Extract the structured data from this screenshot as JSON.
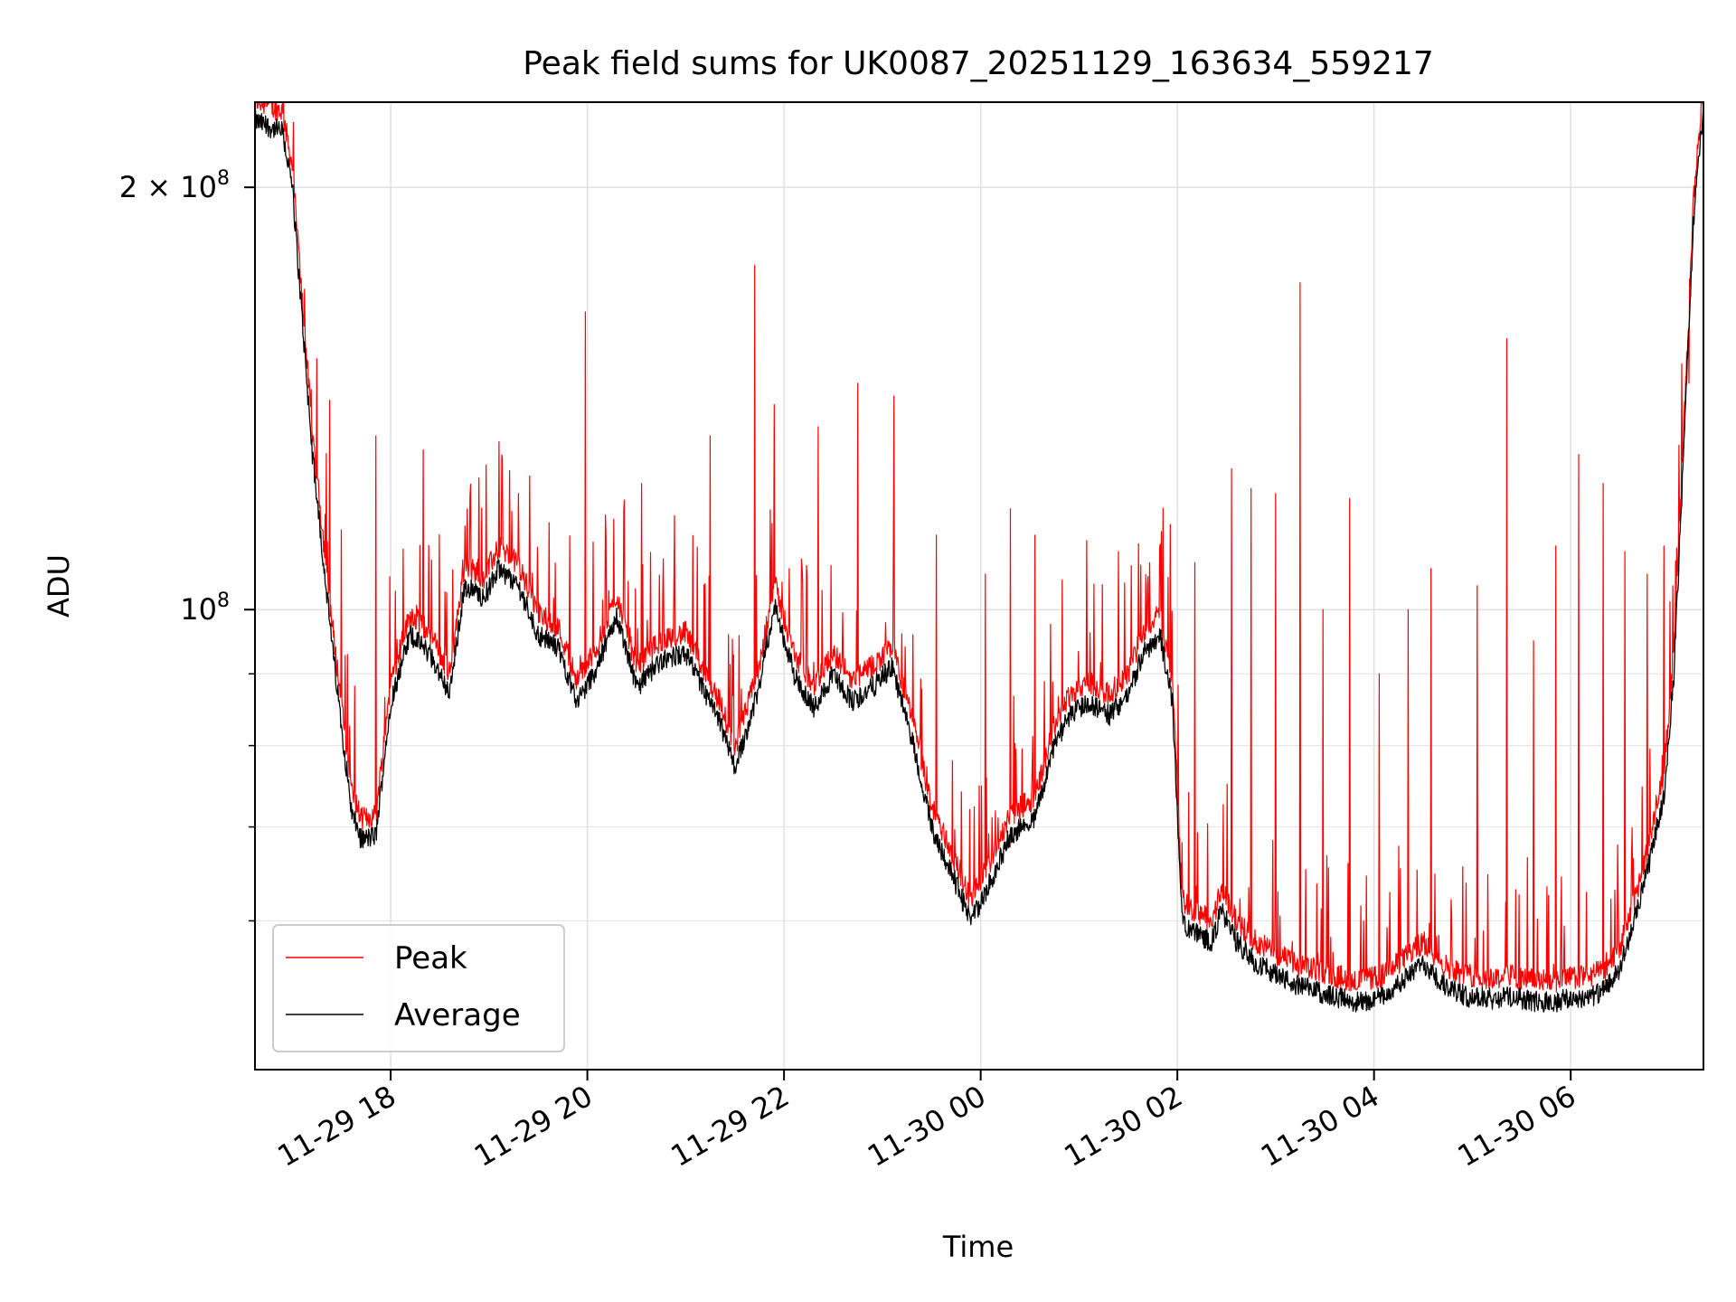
{
  "chart_data": {
    "type": "line",
    "title": "Peak field sums for UK0087_20251129_163634_559217",
    "xlabel": "Time",
    "ylabel": "ADU",
    "yscale": "log",
    "xlim": [
      16.62,
      31.35
    ],
    "ylim": [
      47000000,
      230000000
    ],
    "grid": true,
    "legend_position": "lower-left",
    "x_ticks": [
      {
        "value": 18,
        "label": "11-29 18"
      },
      {
        "value": 20,
        "label": "11-29 20"
      },
      {
        "value": 22,
        "label": "11-29 22"
      },
      {
        "value": 24,
        "label": "11-30 00"
      },
      {
        "value": 26,
        "label": "11-30 02"
      },
      {
        "value": 28,
        "label": "11-30 04"
      },
      {
        "value": 30,
        "label": "11-30 06"
      }
    ],
    "y_major_ticks": [
      {
        "value": 100000000,
        "mantissa": "10",
        "exponent": "8"
      },
      {
        "value": 200000000,
        "mantissa": "2 × 10",
        "exponent": "8"
      }
    ],
    "y_minor_ticks": [
      60000000,
      70000000,
      80000000,
      90000000
    ],
    "series": [
      {
        "name": "Peak",
        "color": "#ff0000"
      },
      {
        "name": "Average",
        "color": "#000000"
      }
    ],
    "baseline_knots": [
      [
        16.62,
        223000000
      ],
      [
        16.9,
        219000000
      ],
      [
        17.0,
        200000000
      ],
      [
        17.2,
        130000000
      ],
      [
        17.4,
        95000000
      ],
      [
        17.6,
        72000000
      ],
      [
        17.7,
        68500000
      ],
      [
        17.85,
        69000000
      ],
      [
        18.0,
        86000000
      ],
      [
        18.2,
        96000000
      ],
      [
        18.4,
        93000000
      ],
      [
        18.6,
        87000000
      ],
      [
        18.75,
        104000000
      ],
      [
        18.95,
        102000000
      ],
      [
        19.1,
        107000000
      ],
      [
        19.3,
        104000000
      ],
      [
        19.5,
        96000000
      ],
      [
        19.7,
        94000000
      ],
      [
        19.9,
        86000000
      ],
      [
        20.1,
        91000000
      ],
      [
        20.3,
        99000000
      ],
      [
        20.5,
        88000000
      ],
      [
        20.75,
        92000000
      ],
      [
        21.0,
        93000000
      ],
      [
        21.2,
        87000000
      ],
      [
        21.35,
        83000000
      ],
      [
        21.5,
        77000000
      ],
      [
        21.75,
        88000000
      ],
      [
        21.9,
        101000000
      ],
      [
        22.1,
        90000000
      ],
      [
        22.3,
        85000000
      ],
      [
        22.5,
        90000000
      ],
      [
        22.7,
        86000000
      ],
      [
        22.9,
        88000000
      ],
      [
        23.1,
        91000000
      ],
      [
        23.3,
        81000000
      ],
      [
        23.5,
        70000000
      ],
      [
        23.7,
        65000000
      ],
      [
        23.9,
        60000000
      ],
      [
        24.1,
        64000000
      ],
      [
        24.3,
        69000000
      ],
      [
        24.55,
        71000000
      ],
      [
        24.75,
        80000000
      ],
      [
        24.9,
        84000000
      ],
      [
        25.1,
        86000000
      ],
      [
        25.3,
        84000000
      ],
      [
        25.5,
        87000000
      ],
      [
        25.65,
        93000000
      ],
      [
        25.82,
        96000000
      ],
      [
        25.95,
        86000000
      ],
      [
        26.05,
        60000000
      ],
      [
        26.15,
        59000000
      ],
      [
        26.35,
        58000000
      ],
      [
        26.45,
        61000000
      ],
      [
        26.6,
        58000000
      ],
      [
        26.8,
        56000000
      ],
      [
        27.0,
        55000000
      ],
      [
        27.2,
        54000000
      ],
      [
        27.4,
        53500000
      ],
      [
        27.6,
        53000000
      ],
      [
        27.85,
        52500000
      ],
      [
        28.1,
        53000000
      ],
      [
        28.3,
        54500000
      ],
      [
        28.5,
        56000000
      ],
      [
        28.7,
        54000000
      ],
      [
        28.95,
        53000000
      ],
      [
        29.2,
        52800000
      ],
      [
        29.4,
        53000000
      ],
      [
        29.6,
        52600000
      ],
      [
        29.8,
        52500000
      ],
      [
        30.0,
        52800000
      ],
      [
        30.2,
        53000000
      ],
      [
        30.35,
        53500000
      ],
      [
        30.5,
        55500000
      ],
      [
        30.65,
        60000000
      ],
      [
        30.8,
        66000000
      ],
      [
        30.95,
        74000000
      ],
      [
        31.05,
        90000000
      ],
      [
        31.15,
        130000000
      ],
      [
        31.25,
        190000000
      ],
      [
        31.35,
        228000000
      ]
    ],
    "peak_spikes": [
      [
        17.38,
        141000000
      ],
      [
        17.5,
        114000000
      ],
      [
        17.85,
        133000000
      ],
      [
        18.33,
        130000000
      ],
      [
        18.78,
        118000000
      ],
      [
        19.3,
        121000000
      ],
      [
        19.98,
        163000000
      ],
      [
        20.55,
        123000000
      ],
      [
        21.25,
        133000000
      ],
      [
        21.7,
        176000000
      ],
      [
        21.9,
        140000000
      ],
      [
        22.35,
        135000000
      ],
      [
        22.75,
        145000000
      ],
      [
        23.12,
        142000000
      ],
      [
        23.55,
        113000000
      ],
      [
        24.05,
        106000000
      ],
      [
        24.3,
        118000000
      ],
      [
        24.55,
        113000000
      ],
      [
        24.83,
        105000000
      ],
      [
        25.08,
        112000000
      ],
      [
        25.4,
        110000000
      ],
      [
        25.72,
        108000000
      ],
      [
        25.93,
        115000000
      ],
      [
        26.18,
        108000000
      ],
      [
        26.55,
        126000000
      ],
      [
        26.75,
        122000000
      ],
      [
        27.0,
        121000000
      ],
      [
        27.25,
        171000000
      ],
      [
        27.48,
        100000000
      ],
      [
        27.75,
        120000000
      ],
      [
        28.05,
        90000000
      ],
      [
        28.35,
        100000000
      ],
      [
        28.58,
        107000000
      ],
      [
        29.05,
        104000000
      ],
      [
        29.35,
        156000000
      ],
      [
        29.62,
        95000000
      ],
      [
        29.85,
        111000000
      ],
      [
        30.08,
        129000000
      ],
      [
        30.33,
        123000000
      ],
      [
        30.55,
        110000000
      ],
      [
        30.78,
        106000000
      ],
      [
        30.95,
        111000000
      ],
      [
        31.1,
        131000000
      ],
      [
        31.2,
        145000000
      ]
    ]
  }
}
